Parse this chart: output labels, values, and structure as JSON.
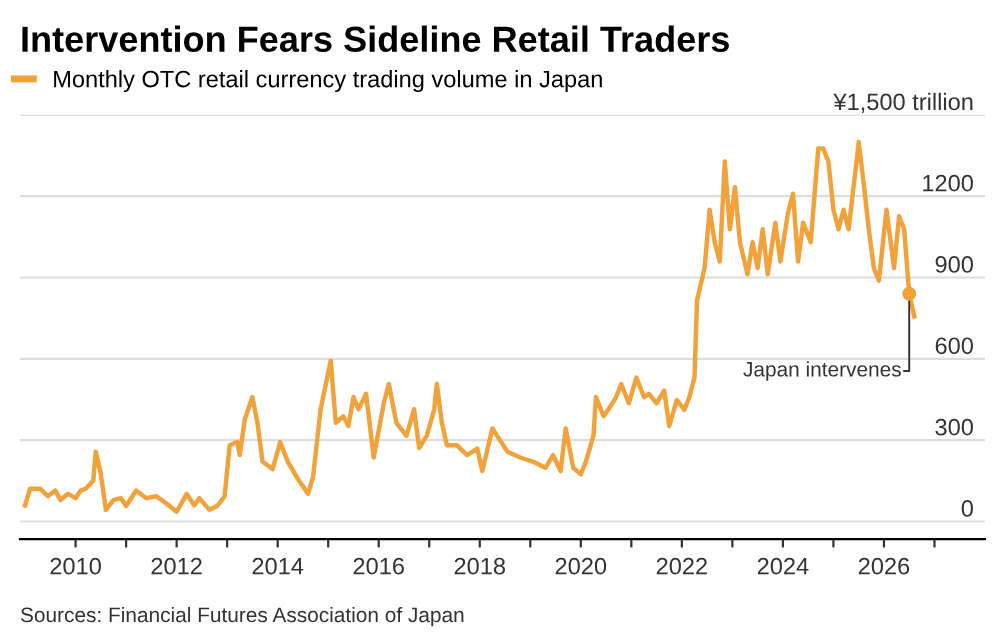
{
  "chart_data": {
    "type": "line",
    "title": "Intervention Fears Sideline Retail Traders",
    "series": [
      {
        "name": "Monthly OTC retail currency trading volume in Japan",
        "color": "#f2a23a",
        "x": [
          2009.0,
          2009.1,
          2009.3,
          2009.45,
          2009.6,
          2009.7,
          2009.85,
          2010.0,
          2010.1,
          2010.2,
          2010.35,
          2010.4,
          2010.5,
          2010.6,
          2010.75,
          2010.9,
          2011.0,
          2011.2,
          2011.4,
          2011.6,
          2011.8,
          2012.0,
          2012.2,
          2012.35,
          2012.45,
          2012.65,
          2012.8,
          2012.95,
          2013.05,
          2013.2,
          2013.25,
          2013.35,
          2013.5,
          2013.6,
          2013.7,
          2013.9,
          2014.05,
          2014.2,
          2014.4,
          2014.6,
          2014.7,
          2014.85,
          2015.05,
          2015.15,
          2015.3,
          2015.4,
          2015.5,
          2015.6,
          2015.75,
          2015.9,
          2016.1,
          2016.2,
          2016.35,
          2016.55,
          2016.7,
          2016.8,
          2016.95,
          2017.1,
          2017.15,
          2017.25,
          2017.35,
          2017.55,
          2017.75,
          2017.95,
          2018.05,
          2018.25,
          2018.4,
          2018.55,
          2018.8,
          2019.05,
          2019.3,
          2019.45,
          2019.6,
          2019.7,
          2019.85,
          2020.0,
          2020.1,
          2020.25,
          2020.3,
          2020.45,
          2020.55,
          2020.7,
          2020.8,
          2020.95,
          2021.1,
          2021.25,
          2021.35,
          2021.5,
          2021.65,
          2021.75,
          2021.9,
          2022.05,
          2022.15,
          2022.25,
          2022.3,
          2022.45,
          2022.55,
          2022.65,
          2022.75,
          2022.85,
          2022.95,
          2023.05,
          2023.15,
          2023.3,
          2023.4,
          2023.5,
          2023.6,
          2023.7,
          2023.85,
          2023.95,
          2024.1,
          2024.2,
          2024.3,
          2024.4,
          2024.55,
          2024.7,
          2024.8,
          2024.9,
          2025.0,
          2025.1,
          2025.2,
          2025.3,
          2025.45,
          2025.5,
          2025.6,
          2025.7,
          2025.8,
          2025.9,
          2026.05,
          2026.2,
          2026.3,
          2026.4,
          2026.5,
          2026.6
        ],
        "values": [
          59,
          121,
          121,
          93,
          114,
          79,
          102,
          86,
          114,
          121,
          150,
          257,
          174,
          43,
          79,
          86,
          57,
          114,
          86,
          93,
          66,
          36,
          102,
          59,
          86,
          43,
          57,
          93,
          281,
          293,
          245,
          378,
          459,
          364,
          221,
          193,
          293,
          221,
          157,
          102,
          164,
          414,
          593,
          364,
          388,
          352,
          459,
          414,
          471,
          236,
          436,
          507,
          364,
          316,
          414,
          271,
          316,
          414,
          507,
          364,
          281,
          281,
          245,
          269,
          186,
          343,
          300,
          257,
          236,
          221,
          198,
          245,
          186,
          343,
          198,
          174,
          221,
          316,
          459,
          388,
          414,
          459,
          507,
          436,
          531,
          459,
          471,
          436,
          483,
          352,
          448,
          412,
          459,
          531,
          816,
          935,
          1150,
          1030,
          959,
          1328,
          1078,
          1233,
          1030,
          912,
          1030,
          935,
          1078,
          912,
          1102,
          959,
          1138,
          1209,
          959,
          1102,
          1030,
          1376,
          1376,
          1328,
          1150,
          1078,
          1150,
          1078,
          1316,
          1400,
          1245,
          1078,
          935,
          888,
          1150,
          935,
          1126,
          1078,
          840,
          757
        ]
      }
    ],
    "xlim": [
      2008.9,
      2028.0
    ],
    "xticks": [
      2010,
      {
        "value": 2011,
        "label": null
      },
      2012,
      {
        "value": 2013,
        "label": null
      },
      2014,
      {
        "value": 2015,
        "label": null
      },
      2016,
      {
        "value": 2017,
        "label": null
      },
      2018,
      {
        "value": 2019,
        "label": null
      },
      2020,
      {
        "value": 2021,
        "label": null
      },
      2022,
      {
        "value": 2023,
        "label": null
      },
      2024,
      {
        "value": 2025,
        "label": null
      },
      2026,
      {
        "value": 2027,
        "label": null
      }
    ],
    "ylim": [
      -65,
      1500
    ],
    "yticks": [
      0,
      300,
      600,
      900,
      1200,
      {
        "value": 1500,
        "label": "¥1,500 trillion"
      }
    ],
    "grid": "y",
    "legend": "top left",
    "annotations": [
      {
        "text": "Japan intervenes",
        "x": 2026.5,
        "y": 840
      },
      "Sources: Financial Futures Association of Japan"
    ]
  }
}
